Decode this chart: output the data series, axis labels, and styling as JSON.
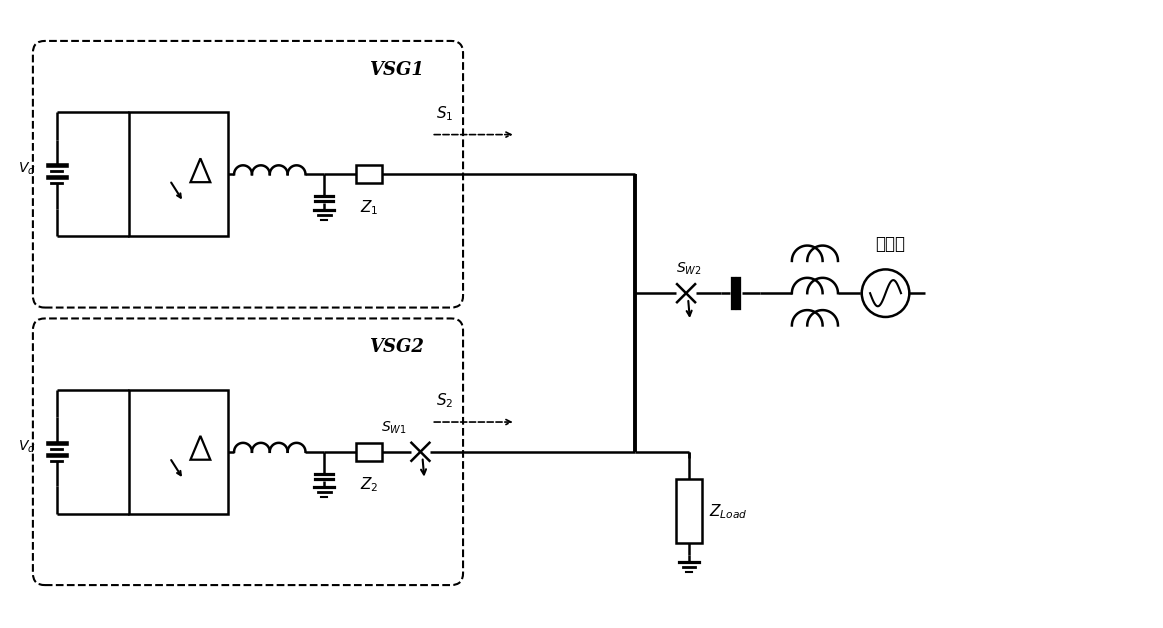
{
  "bg_color": "#ffffff",
  "line_color": "#000000",
  "figsize": [
    11.63,
    6.28
  ],
  "dpi": 100,
  "vsg1_label": "VSG1",
  "vsg2_label": "VSG2",
  "vd_label": "$V_{d}$",
  "z1_label": "$Z_1$",
  "z2_label": "$Z_2$",
  "zload_label": "$Z_{Load}$",
  "s1_label": "$S_1$",
  "s2_label": "$S_2$",
  "sw1_label": "$S_{W1}$",
  "sw2_label": "$S_{W2}$",
  "grid_label": "配电网"
}
